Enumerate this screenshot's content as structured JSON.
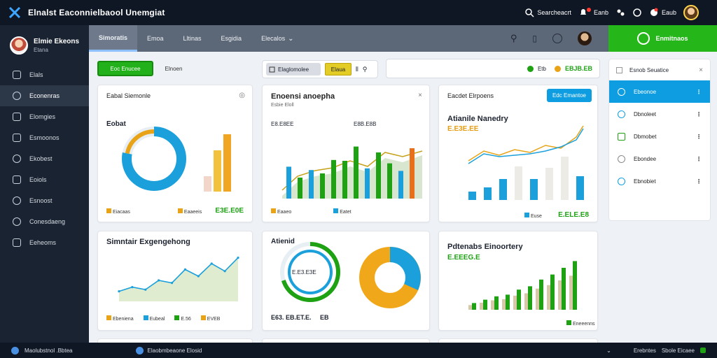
{
  "topbar": {
    "title": "Elnalst Eaconnielbaool Unemgiat",
    "search_label": "Searcheacrt",
    "notif_label": "Eanb",
    "user_label": "Eaub"
  },
  "sidebar": {
    "profile_name": "Elmie Ekeons",
    "profile_sub": "Etana",
    "items": [
      {
        "label": "Elals"
      },
      {
        "label": "Econenras"
      },
      {
        "label": "Elomgies"
      },
      {
        "label": "Esmoonos"
      },
      {
        "label": "Ekobest"
      },
      {
        "label": "Eoiols"
      },
      {
        "label": "Esnoost"
      },
      {
        "label": "Conesdaeng"
      },
      {
        "label": "Eeheoms"
      }
    ]
  },
  "subnav": {
    "tabs": [
      "Simoratis",
      "Emoa",
      "Lltinas",
      "Esgidia",
      "Elecalos"
    ],
    "cta_label": "Enmitnaos"
  },
  "toolbar": {
    "primary_label": "Eoc Enucee",
    "secondary_label": "Elnoen",
    "search_label": "Elaglomolee",
    "search_go": "Elaua",
    "filter_a": "Etb",
    "filter_b": "EBJB.EB"
  },
  "cards": {
    "donut": {
      "header": "Eabal Siemonle",
      "label": "Eobat",
      "legend": [
        "Eiacaas",
        "Eaaeeis"
      ],
      "total": "E3E.E0E",
      "chart_data": {
        "type": "pie",
        "values": [
          78,
          22
        ]
      }
    },
    "area1": {
      "header": "Enoensi anoepha",
      "sub": "Esbie Eloll",
      "top_a": "E8.E8EE",
      "top_b": "E8B.E8B",
      "legend": [
        "Eaaeo",
        "Eatet"
      ],
      "chart_data": {
        "type": "bar",
        "values": [
          38,
          25,
          34,
          30,
          46,
          45,
          62,
          36,
          55,
          42,
          33,
          60
        ]
      }
    },
    "bar1": {
      "header": "Eacdet Elrpoens",
      "button": "Edc Emantoe",
      "big": "Atianile Nanedry",
      "value": "E.E3E.EE",
      "legend": [
        "Euse"
      ],
      "total": "E.ELE.E8",
      "chart_data": {
        "type": "bar",
        "values": [
          12,
          18,
          30,
          48,
          30,
          46,
          62,
          34
        ]
      }
    },
    "line1": {
      "big": "Simntair Exgengehong",
      "legend": [
        "Ebeniena",
        "Eubeal",
        "E.56",
        "EVEB"
      ],
      "chart_data": {
        "type": "line",
        "values": [
          12,
          17,
          14,
          25,
          22,
          38,
          30,
          45,
          36,
          52
        ]
      }
    },
    "donut2": {
      "big": "Atienid",
      "inner": "E.E3.E3E",
      "bottom": "E63. EB.ET.E.",
      "bottom2": "EB",
      "chart_data": {
        "type": "pie",
        "values": [
          70,
          30
        ]
      }
    },
    "bar2": {
      "big": "Pdtenabs Einoortery",
      "value": "E.EEEG.E",
      "legend": [
        "Eneeenns"
      ],
      "chart_data": {
        "type": "bar",
        "values": [
          8,
          12,
          16,
          18,
          24,
          28,
          36,
          42,
          50,
          58
        ]
      }
    }
  },
  "rpanel": {
    "title": "Esnob Seuatice",
    "items": [
      {
        "label": "Ebeonoe",
        "active": true
      },
      {
        "label": "Dbnoleet"
      },
      {
        "label": "Dbmobet"
      },
      {
        "label": "Ebondee"
      },
      {
        "label": "Ebnobiet"
      }
    ]
  },
  "bottombar": {
    "left": "Maolubstnol .Bbtea",
    "mid": "Elaobmbeaone Elosid",
    "right_a": "Erebntes",
    "right_b": "Sbole Eicaee"
  }
}
